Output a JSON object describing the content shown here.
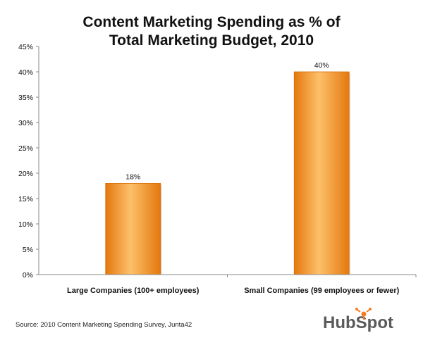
{
  "chart_data": {
    "type": "bar",
    "title_lines": [
      "Content Marketing Spending as % of",
      "Total Marketing Budget, 2010"
    ],
    "categories": [
      "Large Companies (100+ employees)",
      "Small Companies  (99 employees or fewer)"
    ],
    "values": [
      18,
      40
    ],
    "data_labels": [
      "18%",
      "40%"
    ],
    "y_ticks": [
      "0%",
      "5%",
      "10%",
      "15%",
      "20%",
      "25%",
      "30%",
      "35%",
      "40%",
      "45%"
    ],
    "ylim": [
      0,
      45
    ],
    "ytick_step": 5,
    "grid": false,
    "bar_color": "#f08a1c",
    "bar_highlight": "#fcc06a",
    "bar_shadow": "#d86e08",
    "xlabel": "",
    "ylabel": ""
  },
  "footer": {
    "source": "Source: 2010 Content Marketing Spending Survey, Junta42",
    "logo_text": "HubSpot",
    "logo_color": "#f57c22"
  }
}
